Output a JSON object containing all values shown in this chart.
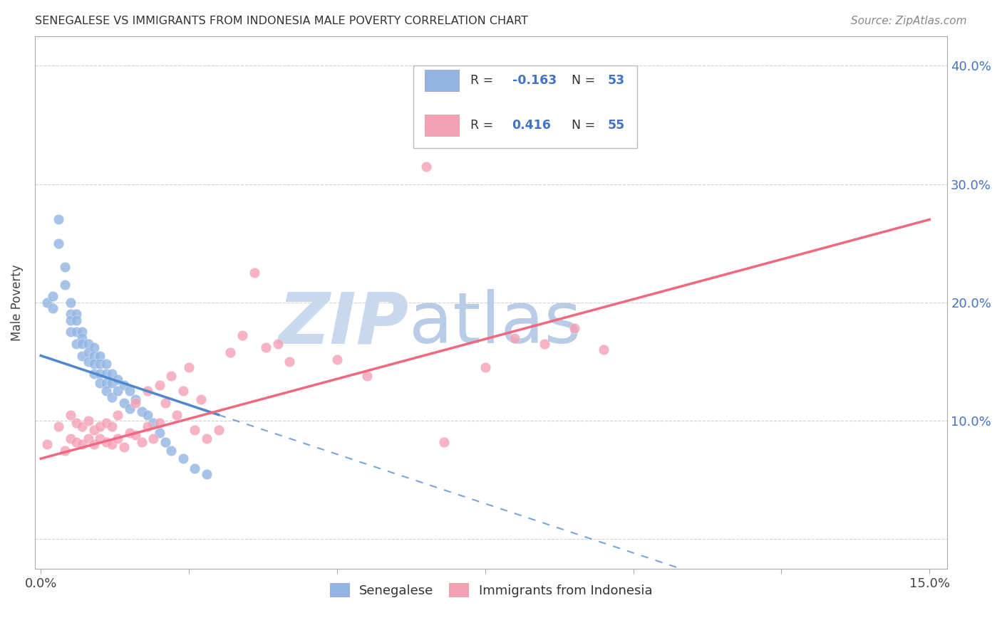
{
  "title": "SENEGALESE VS IMMIGRANTS FROM INDONESIA MALE POVERTY CORRELATION CHART",
  "source": "Source: ZipAtlas.com",
  "ylabel": "Male Poverty",
  "xticks_positions": [
    0.0,
    0.025,
    0.05,
    0.075,
    0.1,
    0.125,
    0.15
  ],
  "yticks_positions": [
    0.0,
    0.1,
    0.2,
    0.3,
    0.4
  ],
  "xlim": [
    -0.001,
    0.153
  ],
  "ylim": [
    -0.025,
    0.425
  ],
  "R_senegalese": -0.163,
  "N_senegalese": 53,
  "R_indonesia": 0.416,
  "N_indonesia": 55,
  "color_senegalese": "#91b4e3",
  "color_indonesia": "#f4a0b5",
  "color_line_senegalese": "#4f86cc",
  "color_line_indonesia": "#f06880",
  "color_text_blue": "#4472c4",
  "watermark_zip_color": "#c8d8ee",
  "watermark_atlas_color": "#b8cce8",
  "senegalese_x": [
    0.001,
    0.002,
    0.002,
    0.003,
    0.003,
    0.004,
    0.004,
    0.005,
    0.005,
    0.005,
    0.005,
    0.006,
    0.006,
    0.006,
    0.006,
    0.007,
    0.007,
    0.007,
    0.007,
    0.008,
    0.008,
    0.008,
    0.009,
    0.009,
    0.009,
    0.009,
    0.01,
    0.01,
    0.01,
    0.01,
    0.011,
    0.011,
    0.011,
    0.011,
    0.012,
    0.012,
    0.012,
    0.013,
    0.013,
    0.014,
    0.014,
    0.015,
    0.015,
    0.016,
    0.017,
    0.018,
    0.019,
    0.02,
    0.021,
    0.022,
    0.024,
    0.026,
    0.028
  ],
  "senegalese_y": [
    0.2,
    0.205,
    0.195,
    0.27,
    0.25,
    0.23,
    0.215,
    0.2,
    0.19,
    0.185,
    0.175,
    0.19,
    0.185,
    0.175,
    0.165,
    0.175,
    0.17,
    0.165,
    0.155,
    0.165,
    0.158,
    0.15,
    0.162,
    0.155,
    0.148,
    0.14,
    0.155,
    0.148,
    0.14,
    0.132,
    0.148,
    0.14,
    0.132,
    0.125,
    0.14,
    0.132,
    0.12,
    0.135,
    0.125,
    0.13,
    0.115,
    0.125,
    0.11,
    0.118,
    0.108,
    0.105,
    0.098,
    0.09,
    0.082,
    0.075,
    0.068,
    0.06,
    0.055
  ],
  "indonesia_x": [
    0.001,
    0.003,
    0.004,
    0.005,
    0.005,
    0.006,
    0.006,
    0.007,
    0.007,
    0.008,
    0.008,
    0.009,
    0.009,
    0.01,
    0.01,
    0.011,
    0.011,
    0.012,
    0.012,
    0.013,
    0.013,
    0.014,
    0.015,
    0.016,
    0.016,
    0.017,
    0.018,
    0.018,
    0.019,
    0.02,
    0.02,
    0.021,
    0.022,
    0.023,
    0.024,
    0.025,
    0.026,
    0.027,
    0.028,
    0.03,
    0.032,
    0.034,
    0.036,
    0.038,
    0.04,
    0.042,
    0.05,
    0.055,
    0.065,
    0.068,
    0.075,
    0.08,
    0.085,
    0.09,
    0.095
  ],
  "indonesia_y": [
    0.08,
    0.095,
    0.075,
    0.085,
    0.105,
    0.082,
    0.098,
    0.08,
    0.095,
    0.085,
    0.1,
    0.08,
    0.092,
    0.085,
    0.095,
    0.082,
    0.098,
    0.08,
    0.095,
    0.085,
    0.105,
    0.078,
    0.09,
    0.088,
    0.115,
    0.082,
    0.095,
    0.125,
    0.085,
    0.098,
    0.13,
    0.115,
    0.138,
    0.105,
    0.125,
    0.145,
    0.092,
    0.118,
    0.085,
    0.092,
    0.158,
    0.172,
    0.225,
    0.162,
    0.165,
    0.15,
    0.152,
    0.138,
    0.315,
    0.082,
    0.145,
    0.17,
    0.165,
    0.178,
    0.16
  ],
  "line_s_x0": 0.0,
  "line_s_y0": 0.155,
  "line_s_x1": 0.03,
  "line_s_y1": 0.105,
  "line_s_dash_x0": 0.03,
  "line_s_dash_x1": 0.153,
  "line_i_x0": 0.0,
  "line_i_y0": 0.068,
  "line_i_x1": 0.15,
  "line_i_y1": 0.27
}
